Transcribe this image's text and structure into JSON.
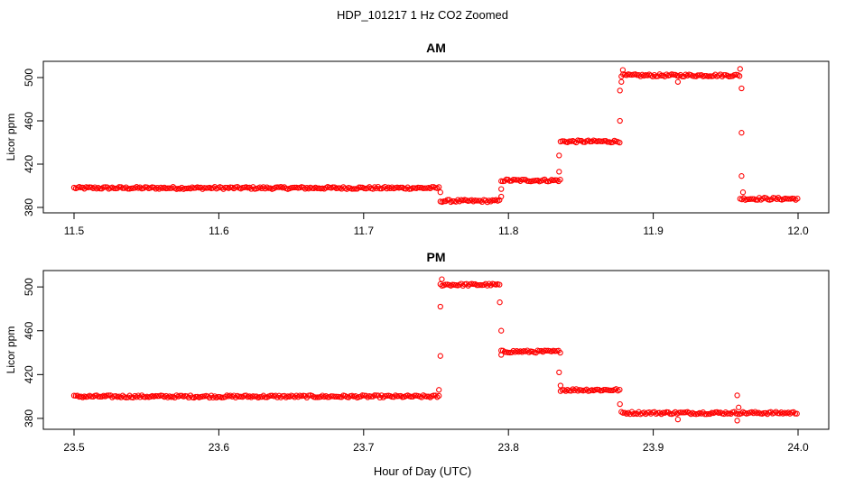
{
  "figure": {
    "title": "HDP_101217  1 Hz CO2 Zoomed",
    "xlabel": "Hour of Day (UTC)"
  },
  "chart_data": [
    {
      "type": "scatter",
      "title": "AM",
      "xlabel": "Hour of Day (UTC)",
      "ylabel": "Licor ppm",
      "xlim": [
        11.5,
        12.0
      ],
      "ylim": [
        380,
        510
      ],
      "xticks": [
        "11.5",
        "11.6",
        "11.7",
        "11.8",
        "11.9",
        "12.0"
      ],
      "xtick_values": [
        11.5,
        11.6,
        11.7,
        11.8,
        11.9,
        12.0
      ],
      "yticks": [
        "380",
        "420",
        "460",
        "500"
      ],
      "ytick_values": [
        380,
        420,
        460,
        500
      ],
      "marker": "open-circle",
      "color": "#ff0000",
      "segments": [
        {
          "x_start": 11.5,
          "x_end": 11.753,
          "value": 398
        },
        {
          "x_start": 11.753,
          "x_end": 11.795,
          "value": 386
        },
        {
          "x_start": 11.795,
          "x_end": 11.836,
          "value": 405
        },
        {
          "x_start": 11.836,
          "x_end": 11.878,
          "value": 441
        },
        {
          "x_start": 11.878,
          "x_end": 11.96,
          "value": 502
        },
        {
          "x_start": 11.96,
          "x_end": 12.0,
          "value": 388
        }
      ],
      "transition_points": [
        {
          "x": 11.753,
          "y": 394
        },
        {
          "x": 11.795,
          "y": 390
        },
        {
          "x": 11.795,
          "y": 397
        },
        {
          "x": 11.835,
          "y": 413
        },
        {
          "x": 11.835,
          "y": 428
        },
        {
          "x": 11.877,
          "y": 460
        },
        {
          "x": 11.877,
          "y": 488
        },
        {
          "x": 11.878,
          "y": 496
        },
        {
          "x": 11.879,
          "y": 507
        },
        {
          "x": 11.917,
          "y": 496
        },
        {
          "x": 11.96,
          "y": 508
        },
        {
          "x": 11.961,
          "y": 490
        },
        {
          "x": 11.961,
          "y": 449
        },
        {
          "x": 11.961,
          "y": 409
        },
        {
          "x": 11.962,
          "y": 394
        }
      ]
    },
    {
      "type": "scatter",
      "title": "PM",
      "xlabel": "Hour of Day (UTC)",
      "ylabel": "Licor ppm",
      "xlim": [
        23.5,
        24.0
      ],
      "ylim": [
        375,
        510
      ],
      "xticks": [
        "23.5",
        "23.6",
        "23.7",
        "23.8",
        "23.9",
        "24.0"
      ],
      "xtick_values": [
        23.5,
        23.6,
        23.7,
        23.8,
        23.9,
        24.0
      ],
      "yticks": [
        "380",
        "420",
        "460",
        "500"
      ],
      "ytick_values": [
        380,
        420,
        460,
        500
      ],
      "marker": "open-circle",
      "color": "#ff0000",
      "segments": [
        {
          "x_start": 23.5,
          "x_end": 23.753,
          "value": 400
        },
        {
          "x_start": 23.753,
          "x_end": 23.795,
          "value": 502
        },
        {
          "x_start": 23.795,
          "x_end": 23.836,
          "value": 441
        },
        {
          "x_start": 23.836,
          "x_end": 23.878,
          "value": 406
        },
        {
          "x_start": 23.878,
          "x_end": 24.0,
          "value": 385
        }
      ],
      "transition_points": [
        {
          "x": 23.752,
          "y": 406
        },
        {
          "x": 23.753,
          "y": 437
        },
        {
          "x": 23.753,
          "y": 482
        },
        {
          "x": 23.754,
          "y": 507
        },
        {
          "x": 23.794,
          "y": 486
        },
        {
          "x": 23.795,
          "y": 460
        },
        {
          "x": 23.795,
          "y": 438
        },
        {
          "x": 23.835,
          "y": 422
        },
        {
          "x": 23.836,
          "y": 410
        },
        {
          "x": 23.877,
          "y": 393
        },
        {
          "x": 23.917,
          "y": 379
        },
        {
          "x": 23.958,
          "y": 401
        },
        {
          "x": 23.958,
          "y": 378
        },
        {
          "x": 23.959,
          "y": 390
        }
      ]
    }
  ]
}
